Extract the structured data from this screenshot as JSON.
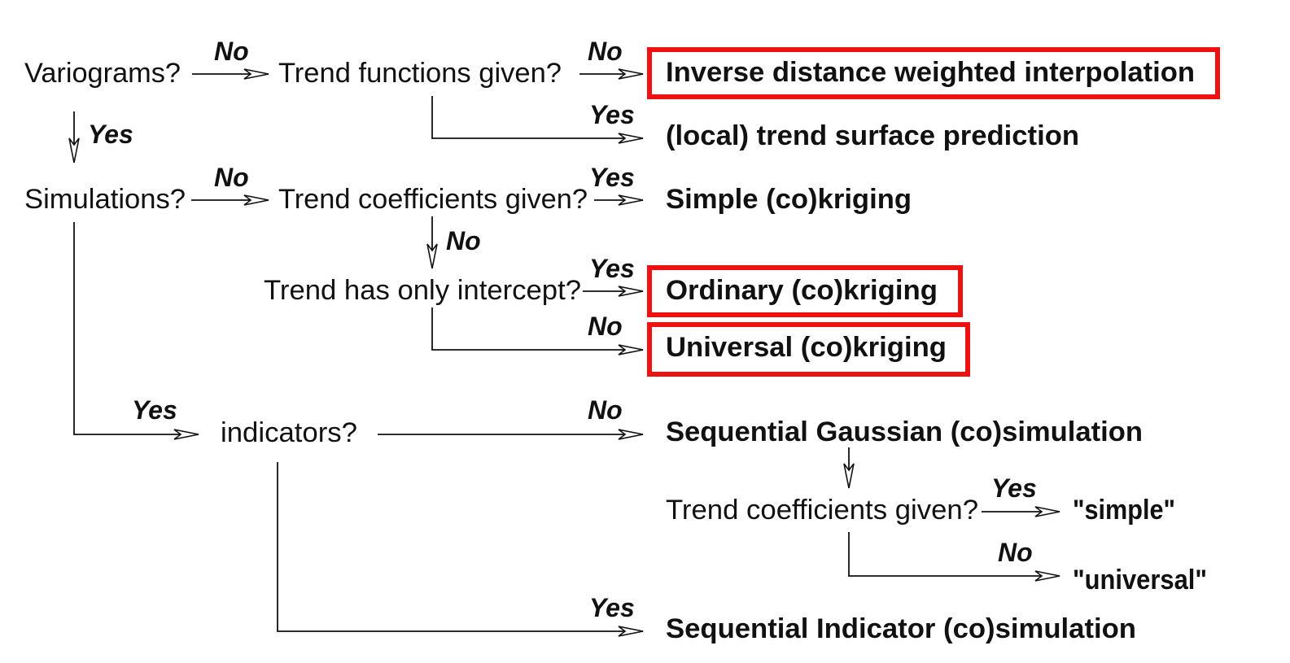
{
  "colors": {
    "highlight": "#ee1111",
    "ink": "#111111"
  },
  "questions": {
    "variograms": "Variograms?",
    "trend_functions": "Trend functions given?",
    "simulations": "Simulations?",
    "trend_coefficients": "Trend coefficients given?",
    "trend_intercept": "Trend has only intercept?",
    "indicators": "indicators?",
    "trend_coefficients_sim": "Trend coefficients given?"
  },
  "outcomes": {
    "idw": "Inverse distance weighted interpolation",
    "trend_surface": "(local) trend surface prediction",
    "simple_kriging": "Simple (co)kriging",
    "ordinary_kriging": "Ordinary (co)kriging",
    "universal_kriging": "Universal (co)kriging",
    "sgs": "Sequential Gaussian (co)simulation",
    "simple": "\"simple\"",
    "universal": "\"universal\"",
    "sis": "Sequential Indicator (co)simulation"
  },
  "edges": {
    "variograms_no": "No",
    "variograms_yes": "Yes",
    "trend_functions_no": "No",
    "trend_functions_yes": "Yes",
    "simulations_no": "No",
    "simulations_yes": "Yes",
    "trend_coefficients_yes": "Yes",
    "trend_coefficients_no": "No",
    "intercept_yes": "Yes",
    "intercept_no": "No",
    "indicators_no": "No",
    "indicators_yes": "Yes",
    "sim_coefficients_yes": "Yes",
    "sim_coefficients_no": "No"
  },
  "highlighted": [
    "idw",
    "ordinary_kriging",
    "universal_kriging"
  ]
}
